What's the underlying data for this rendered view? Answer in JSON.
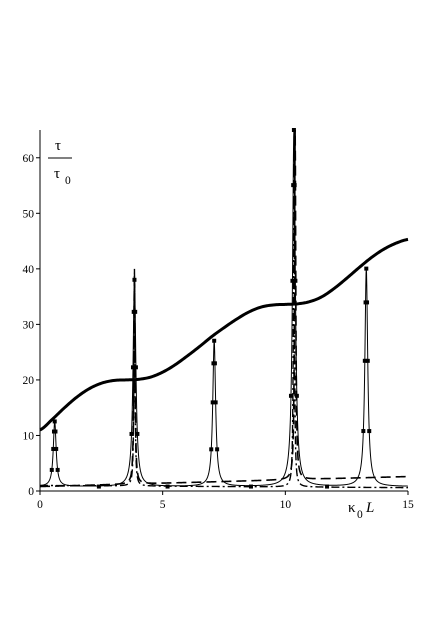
{
  "chart_data": {
    "type": "line",
    "xlim": [
      0,
      15
    ],
    "ylim": [
      0,
      65
    ],
    "x_ticks": [
      0,
      5,
      10,
      15
    ],
    "y_ticks": [
      0,
      10,
      20,
      30,
      40,
      50,
      60
    ],
    "x_tick_labels": [
      "0",
      "5",
      "10",
      "15"
    ],
    "y_tick_labels": [
      "0",
      "10",
      "20",
      "30",
      "40",
      "50",
      "60"
    ],
    "xlabel": {
      "main": "κ",
      "sub": "0",
      "suffix": "L"
    },
    "ylabel": {
      "num": "τ",
      "den": "τ",
      "den_sub": "0"
    },
    "grid": false,
    "legend": "none",
    "resonance_positions": [
      0.6,
      3.85,
      7.1,
      10.35,
      13.3
    ],
    "series": [
      {
        "style": "solid-thick",
        "x": [
          0,
          0.5,
          1,
          1.5,
          2,
          2.5,
          3,
          3.5,
          4,
          4.5,
          5,
          5.5,
          6,
          6.5,
          7,
          7.5,
          8,
          8.5,
          9,
          9.5,
          10,
          10.5,
          11,
          11.5,
          12,
          12.5,
          13,
          13.5,
          14,
          14.5,
          15
        ],
        "y": [
          11,
          12.9,
          15,
          16.9,
          18.4,
          19.4,
          19.9,
          20.0,
          20.1,
          20.5,
          21.4,
          22.7,
          24.3,
          26.0,
          27.8,
          29.4,
          30.9,
          32.2,
          33.1,
          33.5,
          33.6,
          33.7,
          34.1,
          35.0,
          36.5,
          38.3,
          40.2,
          42.0,
          43.5,
          44.6,
          45.3
        ]
      },
      {
        "style": "solid-thin-markers",
        "peaks": [
          {
            "x": 0.6,
            "y": 12.5
          },
          {
            "x": 3.85,
            "y": 38
          },
          {
            "x": 7.1,
            "y": 27
          },
          {
            "x": 10.35,
            "y": 65
          },
          {
            "x": 13.3,
            "y": 40
          }
        ],
        "baseline": 0.8
      },
      {
        "style": "dashed",
        "x": [
          0,
          15
        ],
        "y": [
          0.8,
          2.6
        ],
        "peaks": [
          {
            "x": 3.85,
            "y": 39
          },
          {
            "x": 10.4,
            "y": 65
          }
        ]
      },
      {
        "style": "dash-dot",
        "x": [
          0,
          15
        ],
        "y": [
          1.0,
          0.6
        ],
        "peaks": [
          {
            "x": 3.85,
            "y": 40
          },
          {
            "x": 10.35,
            "y": 62
          }
        ]
      }
    ]
  }
}
